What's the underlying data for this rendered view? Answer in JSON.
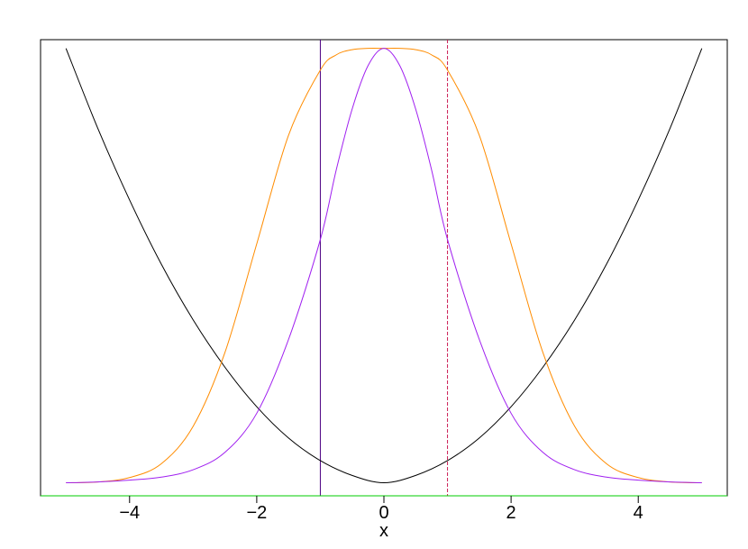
{
  "chart_data": {
    "type": "line",
    "title": "",
    "xlabel": "x",
    "ylabel": "",
    "xlim": [
      -5.4,
      5.4
    ],
    "ylim": [
      -0.03,
      1.02
    ],
    "grid": false,
    "x_ticks": [
      -4,
      -2,
      0,
      2,
      4
    ],
    "x_tick_labels": [
      "−4",
      "−2",
      "0",
      "2",
      "4"
    ],
    "series": [
      {
        "color": "#000000",
        "x": [
          -5,
          -4.5,
          -4,
          -3.5,
          -3,
          -2.5,
          -2,
          -1.5,
          -1,
          -0.5,
          0,
          0.5,
          1,
          1.5,
          2,
          2.5,
          3,
          3.5,
          4,
          4.5,
          5
        ],
        "y": [
          1.0,
          0.816,
          0.651,
          0.503,
          0.375,
          0.266,
          0.175,
          0.103,
          0.051,
          0.017,
          0.0,
          0.017,
          0.051,
          0.103,
          0.175,
          0.266,
          0.375,
          0.503,
          0.651,
          0.816,
          1.0
        ]
      },
      {
        "color": "#FF8C00",
        "x": [
          -5,
          -4.5,
          -4,
          -3.5,
          -3,
          -2.5,
          -2,
          -1.5,
          -1,
          -0.75,
          -0.5,
          -0.25,
          0,
          0.25,
          0.5,
          0.75,
          1,
          1.5,
          2,
          2.5,
          3,
          3.5,
          4,
          4.5,
          5
        ],
        "y": [
          0.0,
          0.002,
          0.012,
          0.044,
          0.13,
          0.3,
          0.55,
          0.8,
          0.95,
          0.985,
          0.997,
          1.0,
          1.0,
          1.0,
          0.997,
          0.985,
          0.95,
          0.8,
          0.55,
          0.3,
          0.13,
          0.044,
          0.012,
          0.002,
          0.0
        ]
      },
      {
        "color": "#A020F0",
        "x": [
          -5,
          -4.5,
          -4,
          -3.5,
          -3,
          -2.5,
          -2,
          -1.5,
          -1,
          -0.75,
          -0.5,
          -0.25,
          0,
          0.25,
          0.5,
          0.75,
          1,
          1.5,
          2,
          2.5,
          3,
          3.5,
          4,
          4.5,
          5
        ],
        "y": [
          0.0,
          0.002,
          0.006,
          0.013,
          0.03,
          0.07,
          0.16,
          0.33,
          0.56,
          0.72,
          0.86,
          0.96,
          1.0,
          0.96,
          0.86,
          0.72,
          0.56,
          0.33,
          0.16,
          0.07,
          0.03,
          0.013,
          0.006,
          0.002,
          0.0
        ]
      }
    ],
    "hlines": [
      {
        "y": -0.03,
        "color": "#00CD00"
      }
    ],
    "vlines": [
      {
        "x": -1,
        "color": "#4B0082",
        "dash": "solid"
      },
      {
        "x": 1,
        "color": "#CC1F55",
        "dash": "dashed"
      }
    ]
  }
}
